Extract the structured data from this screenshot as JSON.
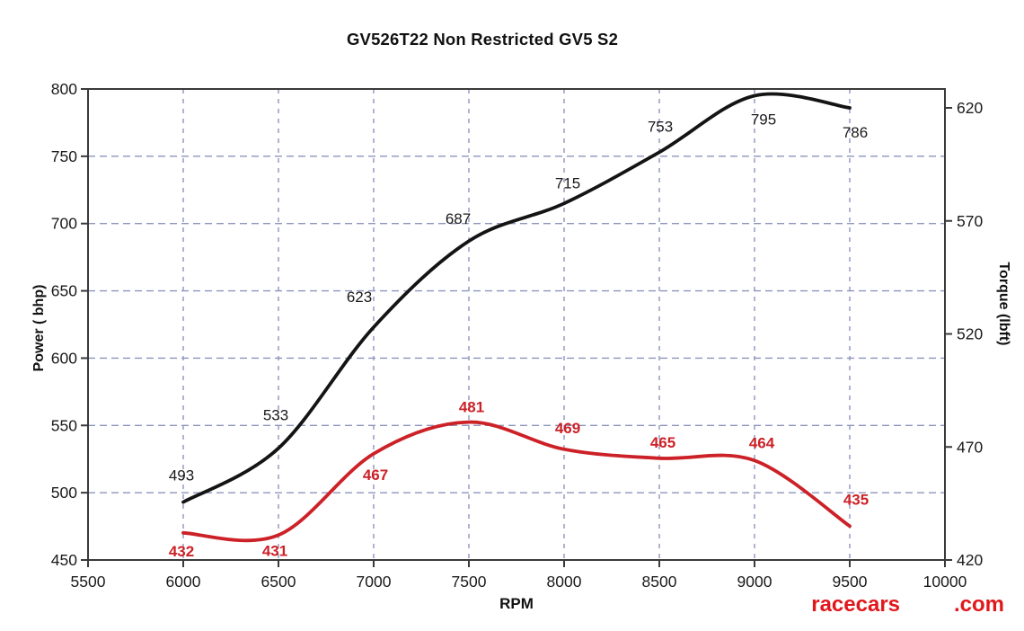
{
  "chart": {
    "title": "GV526T22 Non Restricted GV5 S2",
    "brand": {
      "racecars": "racecars",
      "dotcom": ".com"
    }
  },
  "chart_data": {
    "type": "line",
    "title": "GV526T22 Non Restricted GV5 S2",
    "xlabel": "RPM",
    "ylabel_left": "Power ( bhp)",
    "ylabel_right": "Torque (lbft)",
    "xlim": [
      5500,
      10000
    ],
    "x_ticks": [
      5500,
      6000,
      6500,
      7000,
      7500,
      8000,
      8500,
      9000,
      9500,
      10000
    ],
    "ylim_left": [
      450,
      800
    ],
    "y_ticks_left": [
      450,
      500,
      550,
      600,
      650,
      700,
      750,
      800
    ],
    "ylim_right": [
      420,
      620
    ],
    "y_ticks_right": [
      420,
      470,
      520,
      570,
      620
    ],
    "grid": {
      "style": "dashed",
      "color": "#8d95bd",
      "horizontal_at_left_ticks": true,
      "vertical_at_x_ticks": true
    },
    "legend": "none",
    "x": [
      6000,
      6500,
      7000,
      7500,
      8000,
      8500,
      9000,
      9500
    ],
    "series": [
      {
        "name": "power",
        "axis": "left",
        "color": "#141414",
        "values": [
          493,
          533,
          623,
          687,
          715,
          753,
          795,
          786
        ],
        "label_color": "#1a1a1a",
        "label_bold": false,
        "label_offsets": [
          [
            -2,
            -30
          ],
          [
            -3,
            -37
          ],
          [
            -16,
            -34
          ],
          [
            -12,
            -25
          ],
          [
            4,
            -23
          ],
          [
            1,
            -29
          ],
          [
            10,
            26
          ],
          [
            6,
            27
          ]
        ]
      },
      {
        "name": "torque",
        "axis": "right",
        "color": "#cc2127",
        "values": [
          432,
          431,
          467,
          481,
          469,
          465,
          464,
          435
        ],
        "label_color": "#cc2127",
        "label_bold": true,
        "label_offsets": [
          [
            -2,
            20
          ],
          [
            -4,
            17
          ],
          [
            2,
            23
          ],
          [
            3,
            -17
          ],
          [
            4,
            -24
          ],
          [
            4,
            -18
          ],
          [
            8,
            -20
          ],
          [
            7,
            -30
          ]
        ]
      }
    ]
  }
}
